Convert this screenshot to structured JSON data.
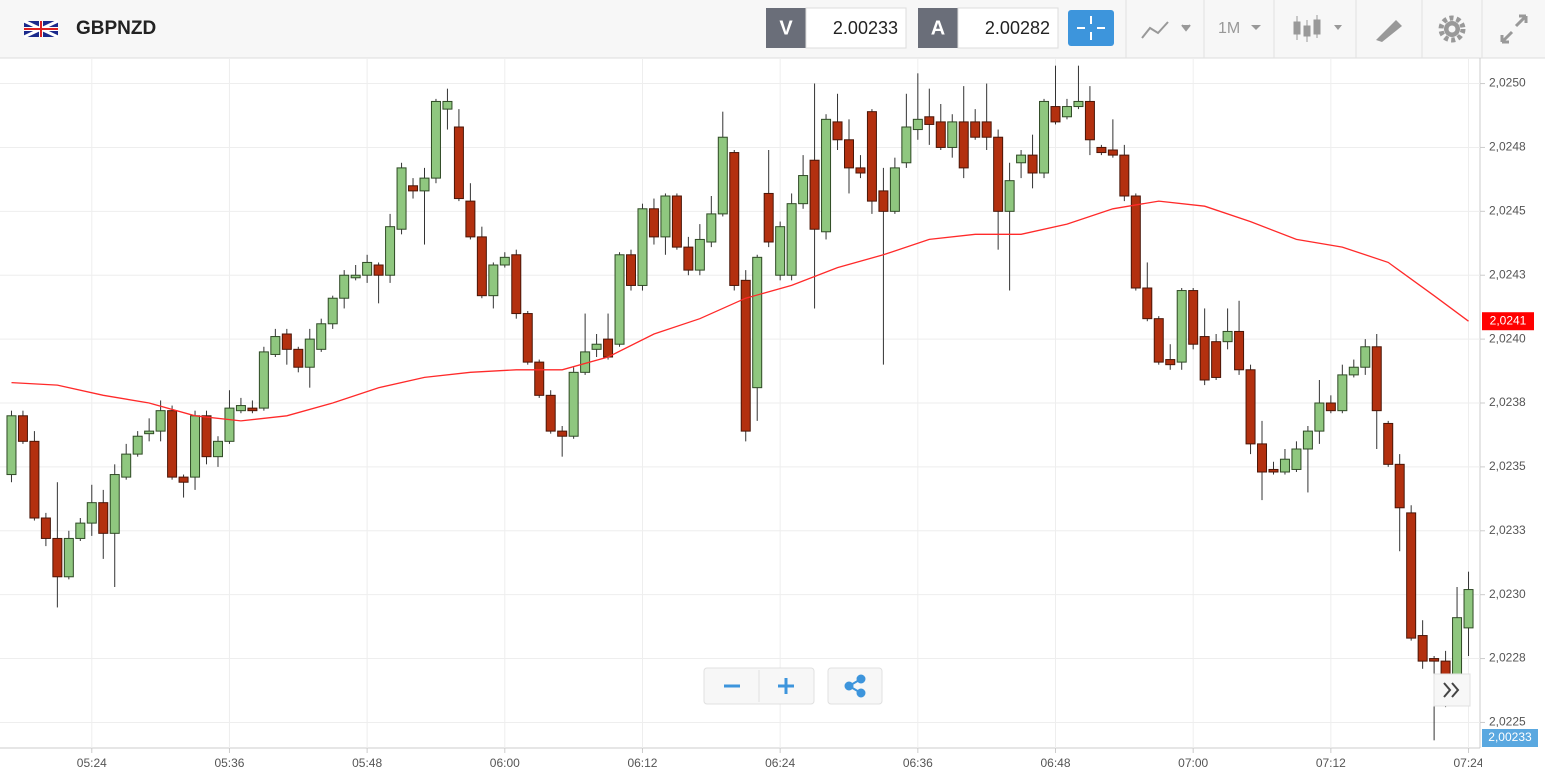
{
  "header": {
    "symbol": "GBPNZD",
    "sell_label": "V",
    "sell_price": "2.00233",
    "buy_label": "A",
    "buy_price": "2.00282",
    "timeframe": "1M"
  },
  "chart_data": {
    "type": "candlestick",
    "x": [
      "05:17",
      "05:18",
      "05:19",
      "05:20",
      "05:21",
      "05:22",
      "05:23",
      "05:24",
      "05:25",
      "05:26",
      "05:27",
      "05:28",
      "05:29",
      "05:30",
      "05:31",
      "05:32",
      "05:33",
      "05:34",
      "05:35",
      "05:36",
      "05:37",
      "05:38",
      "05:39",
      "05:40",
      "05:41",
      "05:42",
      "05:43",
      "05:44",
      "05:45",
      "05:46",
      "05:47",
      "05:48",
      "05:49",
      "05:50",
      "05:51",
      "05:52",
      "05:53",
      "05:54",
      "05:55",
      "05:56",
      "05:57",
      "05:58",
      "05:59",
      "06:00",
      "06:01",
      "06:02",
      "06:03",
      "06:04",
      "06:05",
      "06:06",
      "06:07",
      "06:08",
      "06:09",
      "06:10",
      "06:11",
      "06:12",
      "06:13",
      "06:14",
      "06:15",
      "06:16",
      "06:17",
      "06:18",
      "06:19",
      "06:20",
      "06:21",
      "06:22",
      "06:23",
      "06:24",
      "06:25",
      "06:26",
      "06:27",
      "06:28",
      "06:29",
      "06:30",
      "06:31",
      "06:32",
      "06:33",
      "06:34",
      "06:35",
      "06:36",
      "06:37",
      "06:38",
      "06:39",
      "06:40",
      "06:41",
      "06:42",
      "06:43",
      "06:44",
      "06:45",
      "06:46",
      "06:47",
      "06:48",
      "06:49",
      "06:50",
      "06:51",
      "06:52",
      "06:53",
      "06:54",
      "06:55",
      "06:56",
      "06:57",
      "06:58",
      "06:59",
      "07:00",
      "07:01",
      "07:02",
      "07:03",
      "07:04",
      "07:05",
      "07:06",
      "07:07",
      "07:08",
      "07:09",
      "07:10",
      "07:11",
      "07:12",
      "07:13",
      "07:14",
      "07:15",
      "07:16",
      "07:17",
      "07:18",
      "07:19",
      "07:20",
      "07:21",
      "07:22",
      "07:23",
      "07:24"
    ],
    "open": [
      2.02347,
      2.0237,
      2.0236,
      2.0233,
      2.02322,
      2.02307,
      2.02322,
      2.02328,
      2.02336,
      2.02324,
      2.02346,
      2.02355,
      2.02363,
      2.02364,
      2.02372,
      2.02346,
      2.02346,
      2.0237,
      2.02354,
      2.0236,
      2.02372,
      2.02373,
      2.02373,
      2.02394,
      2.02402,
      2.02396,
      2.02389,
      2.02396,
      2.02406,
      2.02416,
      2.02424,
      2.02425,
      2.02429,
      2.02425,
      2.02443,
      2.0246,
      2.02458,
      2.02463,
      2.0249,
      2.02483,
      2.02454,
      2.0244,
      2.02417,
      2.02429,
      2.02433,
      2.0241,
      2.02391,
      2.02378,
      2.02364,
      2.02362,
      2.02387,
      2.02396,
      2.024,
      2.02398,
      2.02433,
      2.02421,
      2.02451,
      2.0244,
      2.02456,
      2.02436,
      2.02427,
      2.02438,
      2.02449,
      2.02473,
      2.02423,
      2.02381,
      2.02457,
      2.02425,
      2.02425,
      2.02453,
      2.0247,
      2.02442,
      2.02485,
      2.02478,
      2.02467,
      2.02489,
      2.02458,
      2.0245,
      2.02469,
      2.02482,
      2.02487,
      2.02485,
      2.02475,
      2.02485,
      2.02485,
      2.02485,
      2.02479,
      2.0245,
      2.02469,
      2.02472,
      2.02465,
      2.02491,
      2.02487,
      2.02491,
      2.02493,
      2.02475,
      2.02474,
      2.02472,
      2.02456,
      2.0242,
      2.02408,
      2.02392,
      2.02391,
      2.02419,
      2.02401,
      2.02399,
      2.02399,
      2.02403,
      2.02388,
      2.02359,
      2.02349,
      2.02348,
      2.02349,
      2.02357,
      2.02364,
      2.02375,
      2.02372,
      2.02386,
      2.02389,
      2.02397,
      2.02367,
      2.02351,
      2.02332,
      2.02284,
      2.02275,
      2.02274,
      2.02268,
      2.02287
    ],
    "high": [
      2.02372,
      2.02372,
      2.02364,
      2.02332,
      2.02344,
      2.02325,
      2.0233,
      2.02343,
      2.02341,
      2.02351,
      2.02359,
      2.02364,
      2.02369,
      2.02376,
      2.02374,
      2.02347,
      2.02372,
      2.02372,
      2.02362,
      2.0238,
      2.02377,
      2.02376,
      2.02397,
      2.02404,
      2.02404,
      2.02397,
      2.02404,
      2.02408,
      2.02417,
      2.02427,
      2.02429,
      2.02433,
      2.0243,
      2.02449,
      2.02469,
      2.02463,
      2.02467,
      2.02494,
      2.02498,
      2.0249,
      2.02461,
      2.02444,
      2.0243,
      2.02434,
      2.02435,
      2.02411,
      2.02392,
      2.0238,
      2.02366,
      2.02389,
      2.0241,
      2.02402,
      2.0241,
      2.02434,
      2.02435,
      2.02453,
      2.02455,
      2.02457,
      2.02457,
      2.0244,
      2.02445,
      2.02456,
      2.02489,
      2.02474,
      2.02427,
      2.02433,
      2.02474,
      2.02446,
      2.02457,
      2.02472,
      2.025,
      2.02488,
      2.02496,
      2.02486,
      2.02472,
      2.0249,
      2.02467,
      2.02471,
      2.02496,
      2.02504,
      2.02498,
      2.02492,
      2.02488,
      2.02499,
      2.0249,
      2.025,
      2.02482,
      2.02469,
      2.02474,
      2.0248,
      2.02494,
      2.02507,
      2.02494,
      2.02507,
      2.02499,
      2.02476,
      2.02486,
      2.02476,
      2.02457,
      2.0243,
      2.02409,
      2.02398,
      2.0242,
      2.0242,
      2.02412,
      2.02402,
      2.02412,
      2.02415,
      2.0239,
      2.02368,
      2.02352,
      2.02357,
      2.0236,
      2.02366,
      2.02384,
      2.02378,
      2.0239,
      2.02392,
      2.024,
      2.02402,
      2.02368,
      2.02355,
      2.02335,
      2.0229,
      2.02276,
      2.02278,
      2.02303,
      2.02309
    ],
    "low": [
      2.02344,
      2.02359,
      2.02329,
      2.02319,
      2.02295,
      2.02306,
      2.02321,
      2.02323,
      2.02314,
      2.02303,
      2.02345,
      2.02354,
      2.0236,
      2.0236,
      2.02345,
      2.02338,
      2.02341,
      2.02351,
      2.0235,
      2.02359,
      2.02371,
      2.02371,
      2.02372,
      2.02393,
      2.0239,
      2.02387,
      2.02381,
      2.02395,
      2.02404,
      2.02412,
      2.02423,
      2.02422,
      2.02414,
      2.02422,
      2.02441,
      2.02455,
      2.02437,
      2.02461,
      2.02482,
      2.02454,
      2.02439,
      2.02416,
      2.02412,
      2.02428,
      2.02408,
      2.0239,
      2.02377,
      2.02363,
      2.02354,
      2.02361,
      2.02386,
      2.02393,
      2.02392,
      2.02397,
      2.02419,
      2.02419,
      2.02437,
      2.02433,
      2.02435,
      2.02425,
      2.02425,
      2.02436,
      2.02448,
      2.02419,
      2.0236,
      2.02368,
      2.02436,
      2.02423,
      2.02423,
      2.02451,
      2.02412,
      2.02439,
      2.02474,
      2.02457,
      2.02463,
      2.02449,
      2.0239,
      2.02449,
      2.02467,
      2.02478,
      2.02476,
      2.02474,
      2.02471,
      2.02463,
      2.02478,
      2.02474,
      2.02435,
      2.02419,
      2.02463,
      2.02459,
      2.02463,
      2.02484,
      2.02486,
      2.0249,
      2.02472,
      2.02472,
      2.02471,
      2.02454,
      2.02419,
      2.02407,
      2.0239,
      2.02388,
      2.02388,
      2.02396,
      2.02382,
      2.02384,
      2.02396,
      2.02386,
      2.02355,
      2.02337,
      2.02347,
      2.02347,
      2.02348,
      2.0234,
      2.02359,
      2.02371,
      2.02371,
      2.02385,
      2.02386,
      2.02357,
      2.0235,
      2.02317,
      2.02282,
      2.02271,
      2.02243,
      2.02256,
      2.02262,
      2.02276
    ],
    "close": [
      2.0237,
      2.0236,
      2.0233,
      2.02322,
      2.02307,
      2.02322,
      2.02328,
      2.02336,
      2.02324,
      2.02347,
      2.02355,
      2.02362,
      2.02364,
      2.02372,
      2.02346,
      2.02344,
      2.0237,
      2.02354,
      2.0236,
      2.02373,
      2.02374,
      2.02372,
      2.02395,
      2.02401,
      2.02396,
      2.02389,
      2.024,
      2.02406,
      2.02416,
      2.02425,
      2.02425,
      2.0243,
      2.02425,
      2.02444,
      2.02467,
      2.02458,
      2.02463,
      2.02493,
      2.02493,
      2.02455,
      2.0244,
      2.02417,
      2.02429,
      2.02432,
      2.0241,
      2.02391,
      2.02378,
      2.02364,
      2.02362,
      2.02387,
      2.02395,
      2.02398,
      2.02393,
      2.02433,
      2.02421,
      2.02451,
      2.0244,
      2.02456,
      2.02436,
      2.02427,
      2.02439,
      2.02449,
      2.02479,
      2.02421,
      2.02364,
      2.02432,
      2.02438,
      2.02444,
      2.02453,
      2.02464,
      2.02443,
      2.02486,
      2.02478,
      2.02467,
      2.02465,
      2.02454,
      2.0245,
      2.02467,
      2.02483,
      2.02486,
      2.02484,
      2.02475,
      2.02485,
      2.02467,
      2.02479,
      2.02479,
      2.0245,
      2.02462,
      2.02472,
      2.02465,
      2.02493,
      2.02485,
      2.02491,
      2.02493,
      2.02478,
      2.02473,
      2.02472,
      2.02456,
      2.0242,
      2.02408,
      2.02391,
      2.0239,
      2.02419,
      2.02398,
      2.02384,
      2.02385,
      2.02403,
      2.02388,
      2.02359,
      2.02348,
      2.02348,
      2.02353,
      2.02357,
      2.02364,
      2.02375,
      2.02372,
      2.02386,
      2.02389,
      2.02397,
      2.02372,
      2.02351,
      2.02334,
      2.02283,
      2.02274,
      2.02274,
      2.02268,
      2.02291,
      2.02302
    ],
    "up_color": "#8fc77f",
    "down_color": "#b3300f",
    "moving_average": {
      "color": "#ff2a2a",
      "last_label": "2,0241",
      "x": [
        "05:17",
        "05:21",
        "05:25",
        "05:29",
        "05:33",
        "05:37",
        "05:41",
        "05:45",
        "05:49",
        "05:53",
        "05:57",
        "06:01",
        "06:05",
        "06:09",
        "06:13",
        "06:17",
        "06:21",
        "06:25",
        "06:29",
        "06:33",
        "06:37",
        "06:41",
        "06:45",
        "06:49",
        "06:53",
        "06:57",
        "07:01",
        "07:05",
        "07:09",
        "07:13",
        "07:17",
        "07:21",
        "07:24"
      ],
      "values": [
        2.02383,
        2.02382,
        2.02378,
        2.02375,
        2.0237,
        2.02368,
        2.0237,
        2.02375,
        2.02381,
        2.02385,
        2.02387,
        2.02388,
        2.02388,
        2.02393,
        2.02402,
        2.02408,
        2.02416,
        2.02421,
        2.02428,
        2.02433,
        2.02439,
        2.02441,
        2.02441,
        2.02445,
        2.02451,
        2.02454,
        2.02452,
        2.02446,
        2.02439,
        2.02436,
        2.0243,
        2.02417,
        2.02407
      ]
    },
    "price_label": "2,00233",
    "xlim": [
      "05:16",
      "07:25"
    ],
    "xticks": [
      "05:24",
      "05:36",
      "05:48",
      "06:00",
      "06:12",
      "06:24",
      "06:36",
      "06:48",
      "07:00",
      "07:12",
      "07:24"
    ],
    "ylim": [
      2.0224,
      2.0251
    ],
    "yticks": [
      {
        "value": 2.0225,
        "label": "2,0225"
      },
      {
        "value": 2.02275,
        "label": "2,0228"
      },
      {
        "value": 2.023,
        "label": "2,0230"
      },
      {
        "value": 2.02325,
        "label": "2,0233"
      },
      {
        "value": 2.0235,
        "label": "2,0235"
      },
      {
        "value": 2.02375,
        "label": "2,0238"
      },
      {
        "value": 2.024,
        "label": "2,0240"
      },
      {
        "value": 2.02425,
        "label": "2,0243"
      },
      {
        "value": 2.0245,
        "label": "2,0245"
      },
      {
        "value": 2.02475,
        "label": "2,0248"
      },
      {
        "value": 2.025,
        "label": "2,0250"
      }
    ],
    "grid": true
  }
}
